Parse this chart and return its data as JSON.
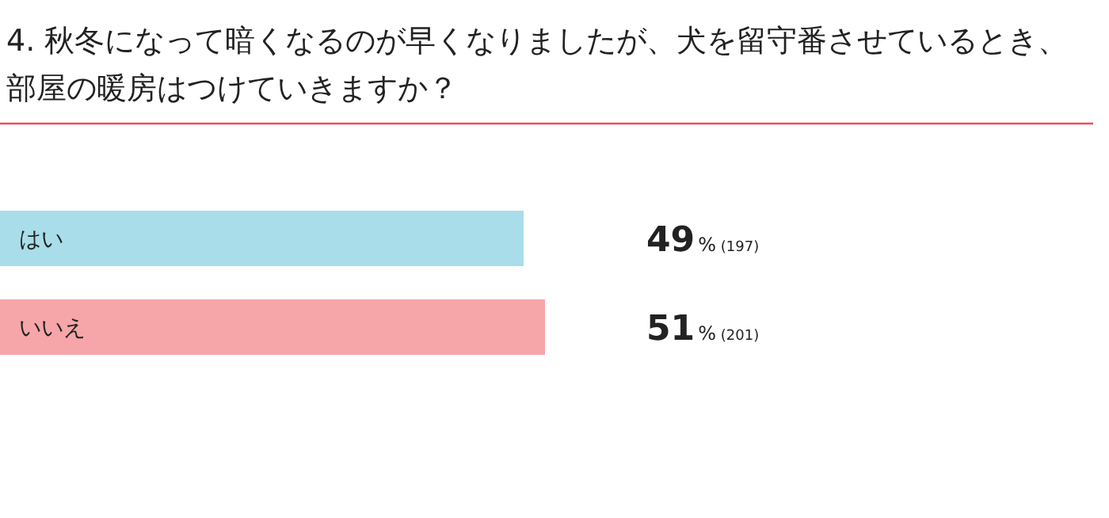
{
  "chart_data": {
    "type": "bar",
    "orientation": "horizontal",
    "title": "4. 秋冬になって暗くなるのが早くなりましたが、犬を留守番させているとき、部屋の暖房はつけていきますか？",
    "categories": [
      "はい",
      "いいえ"
    ],
    "values": [
      49,
      51
    ],
    "colors": [
      "#a9dde9",
      "#f6a5a9"
    ],
    "value_labels": [
      "49% (197)",
      "51% (201)"
    ]
  }
}
